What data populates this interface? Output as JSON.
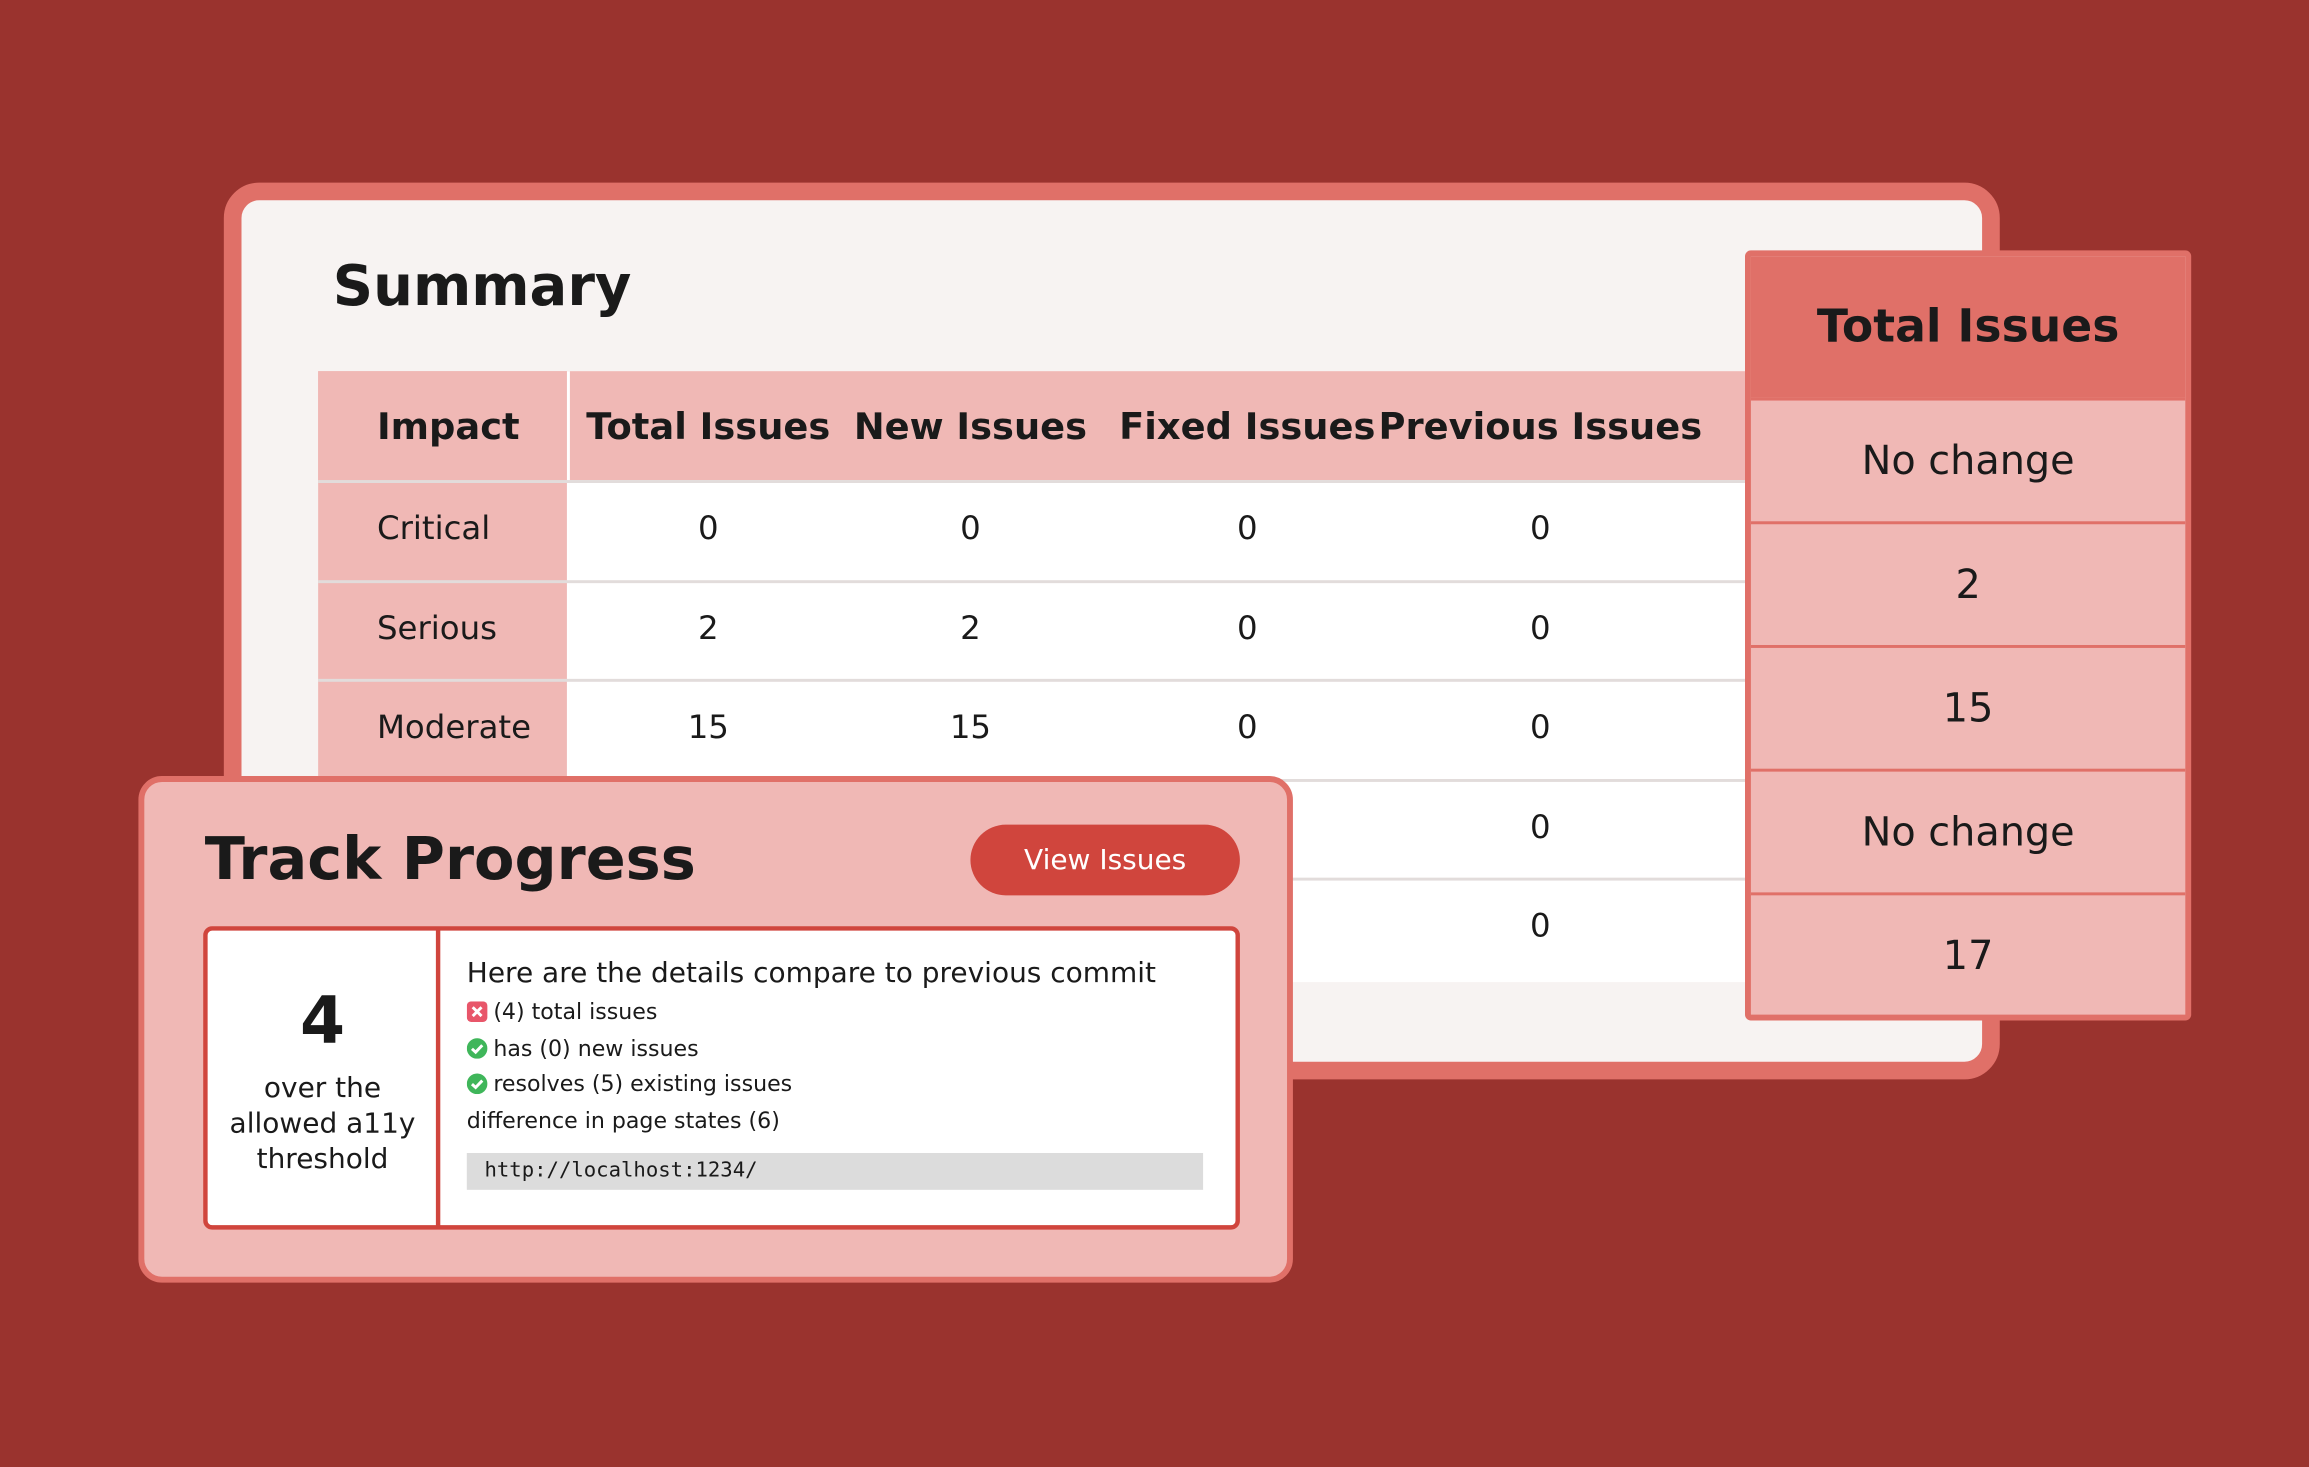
{
  "summary": {
    "title": "Summary",
    "table": {
      "header": [
        "Impact",
        "Total Issues",
        "New Issues",
        "Fixed Issues",
        "Previous Issues"
      ],
      "rows": [
        [
          "Critical",
          "0",
          "0",
          "0",
          "0"
        ],
        [
          "Serious",
          "2",
          "2",
          "0",
          "0"
        ],
        [
          "Moderate",
          "15",
          "15",
          "0",
          "0"
        ],
        [
          null,
          null,
          null,
          null,
          "0"
        ],
        [
          null,
          null,
          null,
          null,
          "0"
        ]
      ]
    }
  },
  "total_panel": {
    "title": "Total Issues",
    "rows": [
      "No change",
      "2",
      "15",
      "No change",
      "17"
    ]
  },
  "track": {
    "title": "Track Progress",
    "button": "View Issues",
    "count": "4",
    "caption": "over the allowed a11y threshold",
    "details_title": "Here are the details compare to previous commit",
    "items": [
      {
        "status": "fail",
        "text": "(4) total issues"
      },
      {
        "status": "pass",
        "text": "has (0) new issues"
      },
      {
        "status": "pass",
        "text": "resolves (5) existing issues"
      },
      {
        "status": "none",
        "text": "difference in page states (6)"
      }
    ],
    "url": "http://localhost:1234/"
  }
}
